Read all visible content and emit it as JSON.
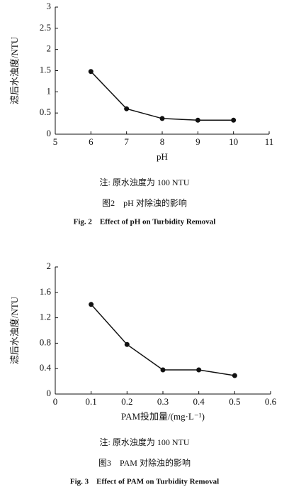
{
  "chart_data": [
    {
      "type": "line",
      "x": [
        6,
        7,
        8,
        9,
        10
      ],
      "values": [
        1.48,
        0.6,
        0.37,
        0.33,
        0.33
      ],
      "color": "#111111",
      "xlim": [
        5,
        11
      ],
      "xticks": [
        5,
        6,
        7,
        8,
        9,
        10,
        11
      ],
      "ylim": [
        0,
        3
      ],
      "yticks": [
        0,
        0.5,
        1,
        1.5,
        2,
        2.5,
        3
      ],
      "x_label": "pH",
      "y_label": "滤后水浊度/NTU",
      "note": "注: 原水浊度为 100 NTU",
      "title": "图2　pH 对除浊的影响",
      "title_en": "Fig. 2　Effect of pH on Turbidity Removal"
    },
    {
      "type": "line",
      "x": [
        0.1,
        0.2,
        0.3,
        0.4,
        0.5
      ],
      "values": [
        1.41,
        0.78,
        0.38,
        0.38,
        0.29
      ],
      "color": "#111111",
      "xlim": [
        0,
        0.6
      ],
      "xticks": [
        0,
        0.1,
        0.2,
        0.3,
        0.4,
        0.5,
        0.6
      ],
      "ylim": [
        0,
        2
      ],
      "yticks": [
        0,
        0.4,
        0.8,
        1.2,
        1.6,
        2
      ],
      "x_label": "PAM投加量/(mg·L⁻¹)",
      "y_label": "滤后水浊度/NTU",
      "note": "注: 原水浊度为 100 NTU",
      "title": "图3　PAM 对除浊的影响",
      "title_en": "Fig. 3　Effect of PAM on Turbidity Removal"
    }
  ]
}
